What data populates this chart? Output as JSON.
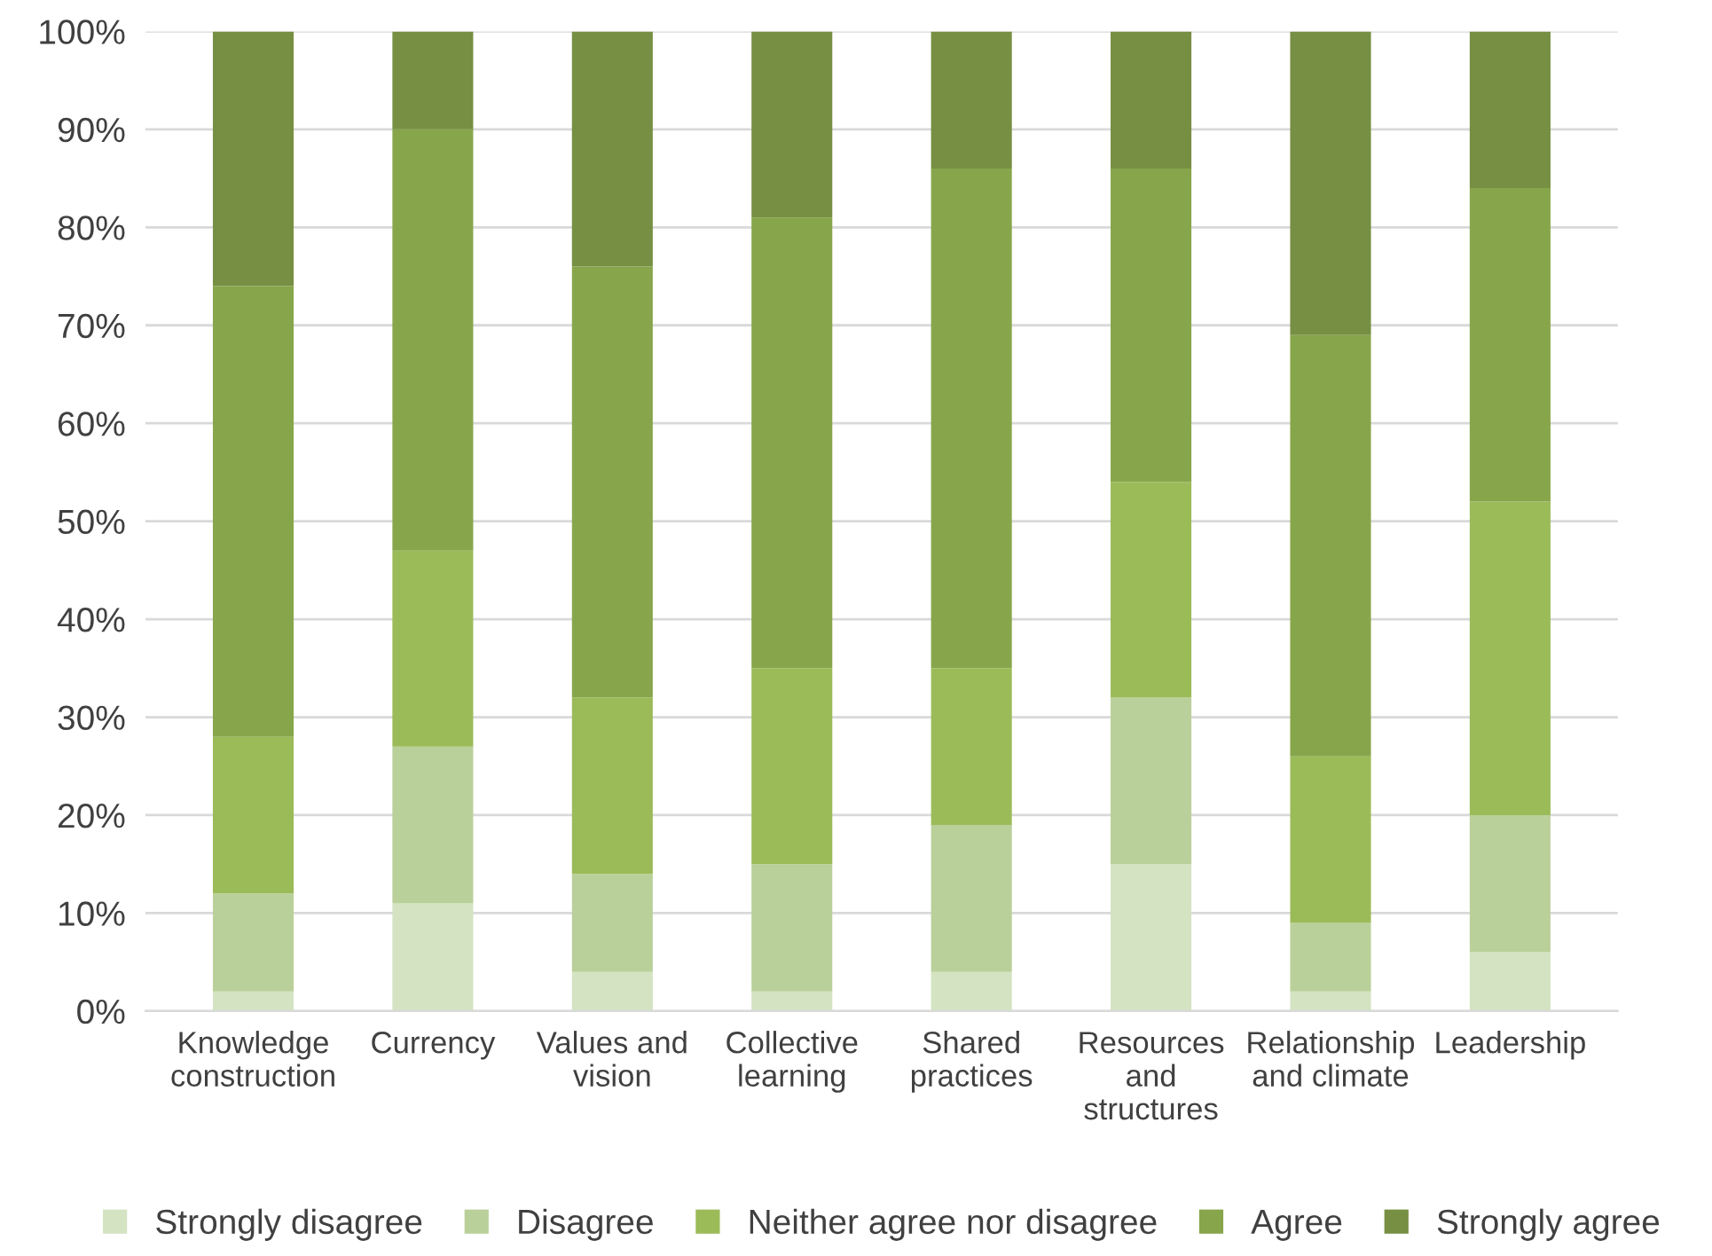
{
  "chart_data": {
    "type": "bar",
    "stacked": true,
    "categories": [
      "Knowledge\nconstruction",
      "Currency",
      "Values and\nvision",
      "Collective\nlearning",
      "Shared\npractices",
      "Resources\nand\nstructures",
      "Relationship\nand climate",
      "Leadership"
    ],
    "series": [
      {
        "name": "Strongly disagree",
        "color": "#d4e3c2",
        "values": [
          2,
          11,
          4,
          2,
          4,
          15,
          2,
          6
        ]
      },
      {
        "name": "Disagree",
        "color": "#bad09a",
        "values": [
          10,
          16,
          10,
          13,
          15,
          17,
          7,
          14
        ]
      },
      {
        "name": "Neither agree nor disagree",
        "color": "#9bbb59",
        "values": [
          16,
          20,
          18,
          20,
          16,
          22,
          17,
          32
        ]
      },
      {
        "name": "Agree",
        "color": "#87a64b",
        "values": [
          46,
          43,
          44,
          46,
          51,
          32,
          43,
          32
        ]
      },
      {
        "name": "Strongly agree",
        "color": "#768f42",
        "values": [
          26,
          10,
          24,
          19,
          14,
          14,
          31,
          16
        ]
      }
    ],
    "ylim": [
      0,
      100
    ],
    "yticks": [
      {
        "value": 0,
        "label": "0%"
      },
      {
        "value": 10,
        "label": "10%"
      },
      {
        "value": 20,
        "label": "20%"
      },
      {
        "value": 30,
        "label": "30%"
      },
      {
        "value": 40,
        "label": "40%"
      },
      {
        "value": 50,
        "label": "50%"
      },
      {
        "value": 60,
        "label": "60%"
      },
      {
        "value": 70,
        "label": "70%"
      },
      {
        "value": 80,
        "label": "80%"
      },
      {
        "value": 90,
        "label": "90%"
      },
      {
        "value": 100,
        "label": "100%"
      }
    ],
    "grid": "y",
    "legend": "bottom"
  }
}
